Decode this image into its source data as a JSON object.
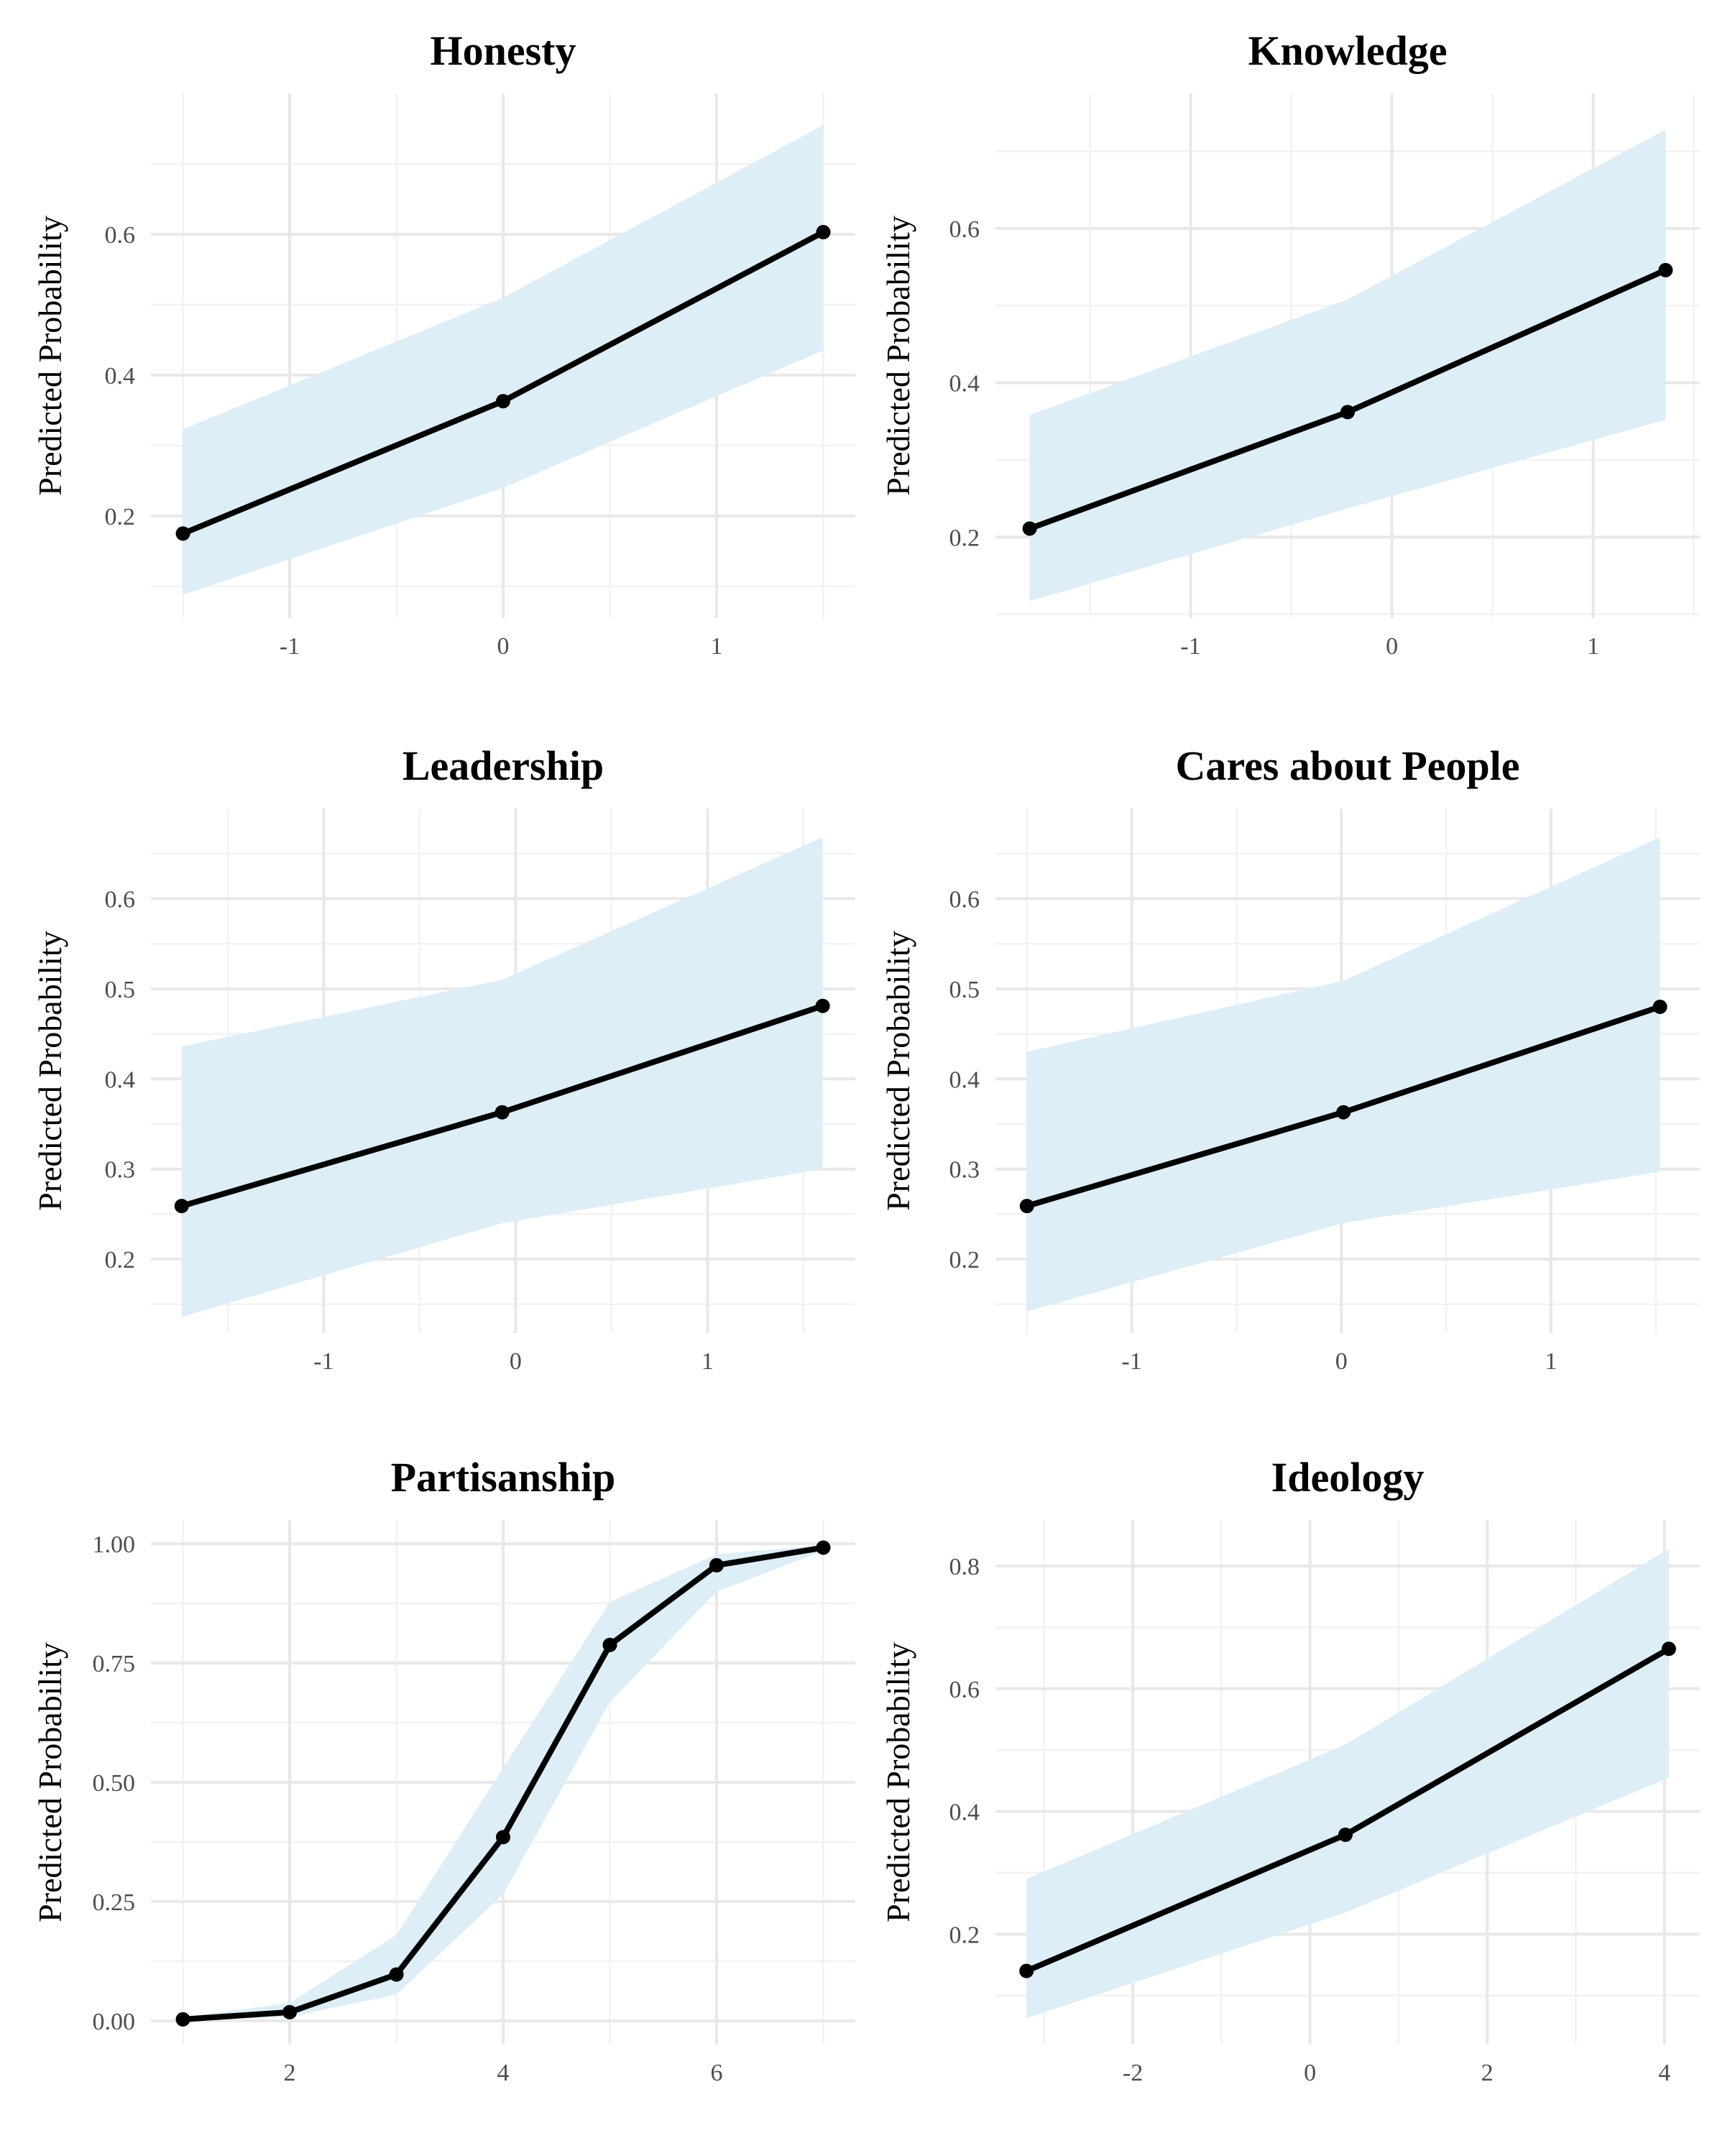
{
  "chart_data": [
    {
      "type": "line",
      "title": "Honesty",
      "ylabel": "Predicted Probability",
      "x": [
        -1.5,
        0,
        1.5
      ],
      "y": [
        0.175,
        0.363,
        0.603
      ],
      "lower": [
        0.088,
        0.24,
        0.435
      ],
      "upper": [
        0.323,
        0.51,
        0.755
      ],
      "xlim": [
        -1.65,
        1.65
      ],
      "ylim": [
        0.055,
        0.8
      ],
      "xticks": [
        -1,
        0,
        1
      ],
      "xtick_labels": [
        "-1",
        "0",
        "1"
      ],
      "yticks": [
        0.2,
        0.4,
        0.6
      ],
      "ytick_labels": [
        "0.2",
        "0.4",
        "0.6"
      ],
      "ribbon_color": "#ddeef6",
      "line_color": "#000000",
      "grid": true
    },
    {
      "type": "line",
      "title": "Knowledge",
      "ylabel": "Predicted Probability",
      "x": [
        -1.8,
        -0.22,
        1.36
      ],
      "y": [
        0.211,
        0.362,
        0.546
      ],
      "lower": [
        0.117,
        0.237,
        0.352
      ],
      "upper": [
        0.358,
        0.508,
        0.728
      ],
      "xlim": [
        -1.97,
        1.53
      ],
      "ylim": [
        0.095,
        0.775
      ],
      "xticks": [
        -1,
        0,
        1
      ],
      "xtick_labels": [
        "-1",
        "0",
        "1"
      ],
      "yticks": [
        0.2,
        0.4,
        0.6
      ],
      "ytick_labels": [
        "0.2",
        "0.4",
        "0.6"
      ],
      "ribbon_color": "#ddeef6",
      "line_color": "#000000",
      "grid": true
    },
    {
      "type": "line",
      "title": "Leadership",
      "ylabel": "Predicted Probability",
      "x": [
        -1.74,
        -0.07,
        1.6
      ],
      "y": [
        0.259,
        0.363,
        0.481
      ],
      "lower": [
        0.136,
        0.24,
        0.3
      ],
      "upper": [
        0.436,
        0.51,
        0.668
      ],
      "xlim": [
        -1.9,
        1.77
      ],
      "ylim": [
        0.118,
        0.7
      ],
      "xticks": [
        -1,
        0,
        1
      ],
      "xtick_labels": [
        "-1",
        "0",
        "1"
      ],
      "yticks": [
        0.2,
        0.3,
        0.4,
        0.5,
        0.6
      ],
      "ytick_labels": [
        "0.2",
        "0.3",
        "0.4",
        "0.5",
        "0.6"
      ],
      "ribbon_color": "#ddeef6",
      "line_color": "#000000",
      "grid": true
    },
    {
      "type": "line",
      "title": "Cares about People",
      "ylabel": "Predicted Probability",
      "x": [
        -1.5,
        0.01,
        1.52
      ],
      "y": [
        0.259,
        0.363,
        0.48
      ],
      "lower": [
        0.142,
        0.24,
        0.297
      ],
      "upper": [
        0.43,
        0.509,
        0.668
      ],
      "xlim": [
        -1.65,
        1.71
      ],
      "ylim": [
        0.118,
        0.7
      ],
      "xticks": [
        -1,
        0,
        1
      ],
      "xtick_labels": [
        "-1",
        "0",
        "1"
      ],
      "yticks": [
        0.2,
        0.3,
        0.4,
        0.5,
        0.6
      ],
      "ytick_labels": [
        "0.2",
        "0.3",
        "0.4",
        "0.5",
        "0.6"
      ],
      "ribbon_color": "#ddeef6",
      "line_color": "#000000",
      "grid": true
    },
    {
      "type": "line",
      "title": "Partisanship",
      "ylabel": "Predicted Probability",
      "x": [
        1,
        2,
        3,
        4,
        5,
        6,
        7
      ],
      "y": [
        0.003,
        0.018,
        0.097,
        0.385,
        0.788,
        0.955,
        0.992
      ],
      "lower": [
        0.001,
        0.008,
        0.055,
        0.265,
        0.668,
        0.9,
        0.985
      ],
      "upper": [
        0.008,
        0.037,
        0.18,
        0.53,
        0.878,
        0.978,
        0.997
      ],
      "xlim": [
        0.7,
        7.3
      ],
      "ylim": [
        -0.05,
        1.05
      ],
      "xticks": [
        2,
        4,
        6
      ],
      "xtick_labels": [
        "2",
        "4",
        "6"
      ],
      "yticks": [
        0,
        0.25,
        0.5,
        0.75,
        1
      ],
      "ytick_labels": [
        "0.00",
        "0.25",
        "0.50",
        "0.75",
        "1.00"
      ],
      "ribbon_color": "#ddeef6",
      "line_color": "#000000",
      "grid": true
    },
    {
      "type": "line",
      "title": "Ideology",
      "ylabel": "Predicted Probability",
      "x": [
        -3.2,
        0.4,
        4.05
      ],
      "y": [
        0.14,
        0.362,
        0.665
      ],
      "lower": [
        0.063,
        0.235,
        0.455
      ],
      "upper": [
        0.29,
        0.509,
        0.828
      ],
      "xlim": [
        -3.55,
        4.4
      ],
      "ylim": [
        0.02,
        0.875
      ],
      "xticks": [
        -2,
        0,
        2,
        4
      ],
      "xtick_labels": [
        "-2",
        "0",
        "2",
        "4"
      ],
      "yticks": [
        0.2,
        0.4,
        0.6,
        0.8
      ],
      "ytick_labels": [
        "0.2",
        "0.4",
        "0.6",
        "0.8"
      ],
      "ribbon_color": "#ddeef6",
      "line_color": "#000000",
      "grid": true
    }
  ]
}
